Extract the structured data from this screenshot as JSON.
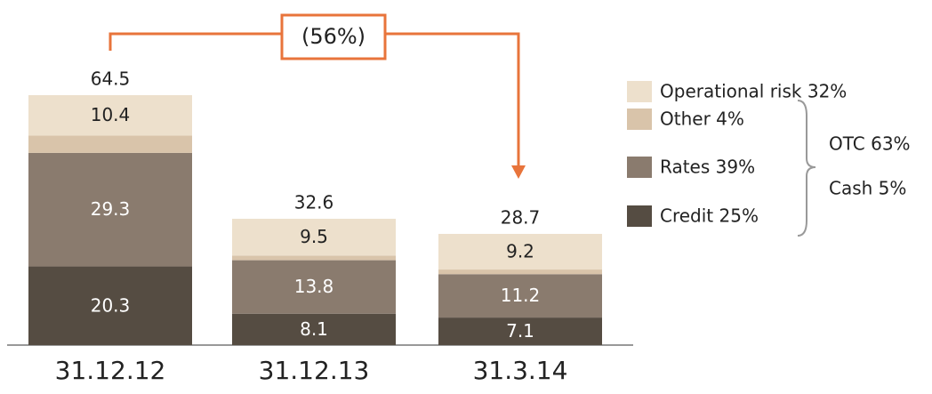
{
  "chart_data": {
    "type": "stacked_bar",
    "categories": [
      "31.12.12",
      "31.12.13",
      "31.3.14"
    ],
    "totals": [
      64.5,
      32.6,
      28.7
    ],
    "series": [
      {
        "name": "Credit 25%",
        "color": "#554c42",
        "values": [
          20.3,
          8.1,
          7.1
        ],
        "label_color": "#ffffff"
      },
      {
        "name": "Rates 39%",
        "color": "#8a7b6e",
        "values": [
          29.3,
          13.8,
          11.2
        ],
        "label_color": "#ffffff"
      },
      {
        "name": "Other 4%",
        "color": "#d9c4aa",
        "values": [
          4.5,
          1.2,
          1.2
        ],
        "show_values": false
      },
      {
        "name": "Operational risk 32%",
        "color": "#ede0cc",
        "values": [
          10.4,
          9.5,
          9.2
        ],
        "label_color": "#222222"
      }
    ],
    "annotation": "(56%)",
    "annotation_color": "#e8743b",
    "group_labels": [
      "OTC 63%",
      "Cash 5%"
    ]
  }
}
